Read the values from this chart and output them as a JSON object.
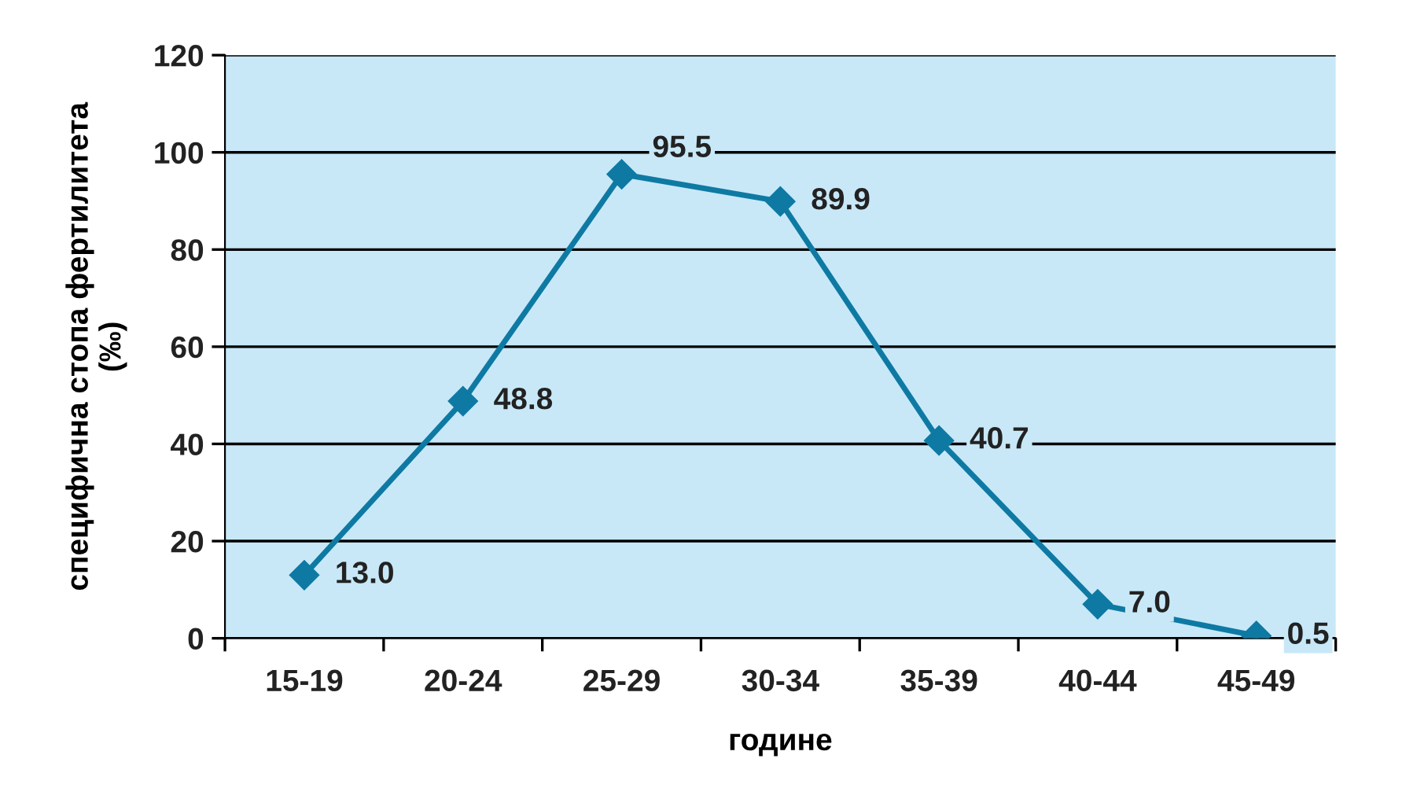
{
  "chart_data": {
    "type": "line",
    "xlabel": "године",
    "ylabel": "специфична стопа фертилитета\n(‰)",
    "categories": [
      "15-19",
      "20-24",
      "25-29",
      "30-34",
      "35-39",
      "40-44",
      "45-49"
    ],
    "series": [
      {
        "color": "#0e7aa3",
        "values": [
          13.0,
          48.8,
          95.5,
          89.9,
          40.7,
          7.0,
          0.5
        ],
        "value_labels": [
          "13.0",
          "48.8",
          "95.5",
          "89.9",
          "40.7",
          "7.0",
          "0.5"
        ]
      }
    ],
    "ylim": [
      0,
      120
    ],
    "yticks": [
      0,
      20,
      40,
      60,
      80,
      100,
      120
    ],
    "grid": "y",
    "marker": "diamond",
    "line_style": "solid",
    "legend": false
  }
}
